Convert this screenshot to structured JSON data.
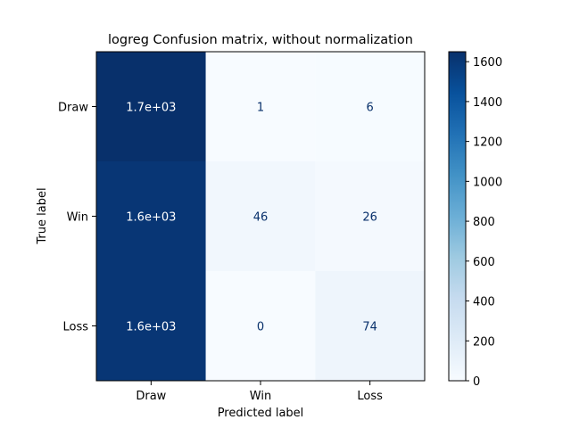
{
  "chart_data": {
    "type": "heatmap",
    "title": "logreg Confusion matrix, without normalization",
    "xlabel": "Predicted label",
    "ylabel": "True label",
    "x_categories": [
      "Draw",
      "Win",
      "Loss"
    ],
    "y_categories": [
      "Draw",
      "Win",
      "Loss"
    ],
    "values": [
      [
        1650,
        1,
        6
      ],
      [
        1610,
        46,
        26
      ],
      [
        1610,
        0,
        74
      ]
    ],
    "cell_labels": [
      [
        "1.7e+03",
        "1",
        "6"
      ],
      [
        "1.6e+03",
        "46",
        "26"
      ],
      [
        "1.6e+03",
        "0",
        "74"
      ]
    ],
    "colormap": "Blues",
    "colorbar": {
      "range": [
        0,
        1650
      ],
      "ticks": [
        0,
        200,
        400,
        600,
        800,
        1000,
        1200,
        1400,
        1600
      ],
      "tick_labels": [
        "0",
        "200",
        "400",
        "600",
        "800",
        "1000",
        "1200",
        "1400",
        "1600"
      ]
    },
    "colors": {
      "low": "#f7fbff",
      "high": "#08306b"
    }
  }
}
